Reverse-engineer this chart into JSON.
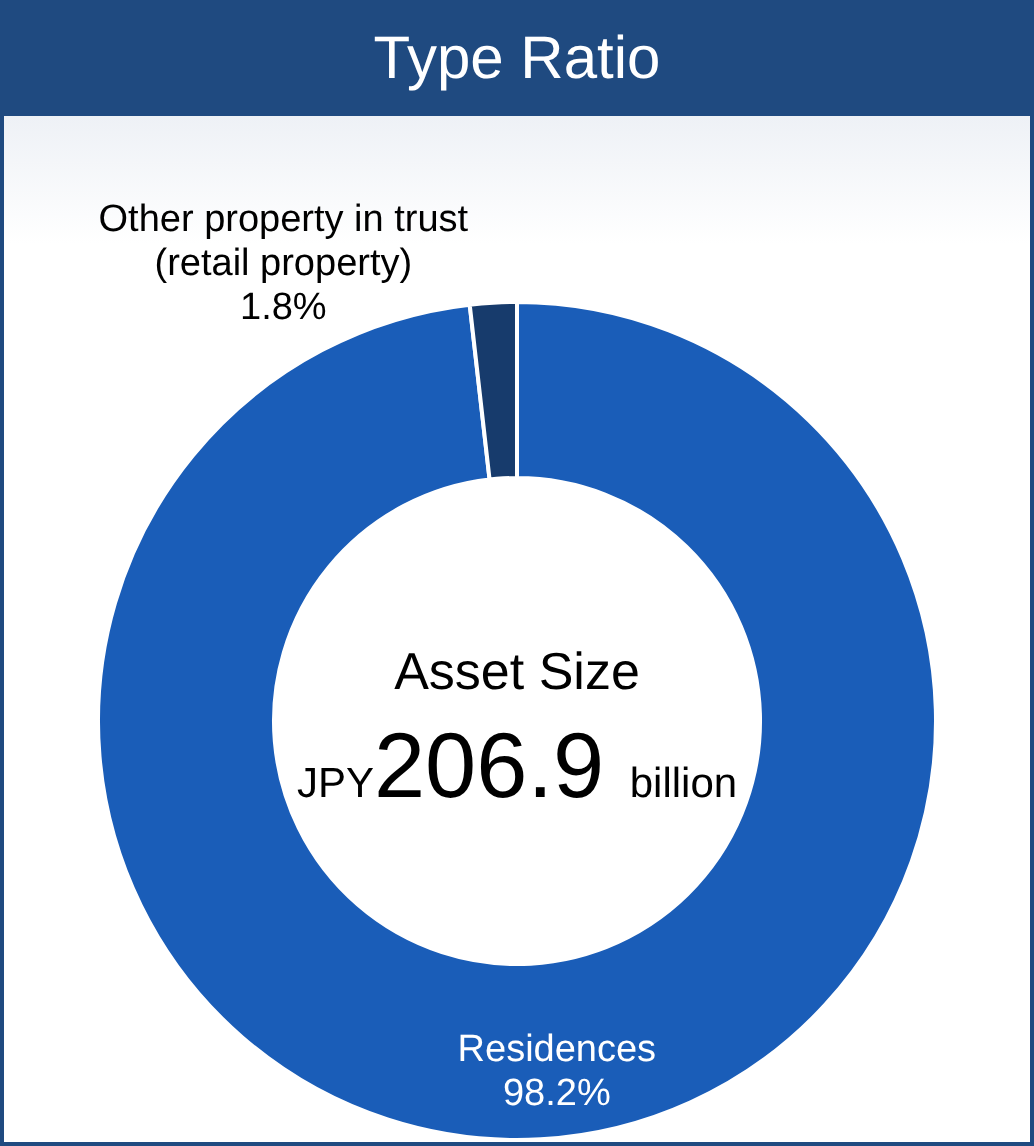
{
  "chart_data": {
    "type": "donut",
    "title": "Type Ratio",
    "categories": [
      "Residences",
      "Other property in trust (retail property)"
    ],
    "values": [
      98.2,
      1.8
    ],
    "value_labels": [
      "98.2%",
      "1.8%"
    ],
    "colors": [
      "#1a5db8",
      "#173b6c"
    ],
    "annotations": [
      "Asset Size",
      "JPY206.9 billion"
    ],
    "legend": false
  }
}
